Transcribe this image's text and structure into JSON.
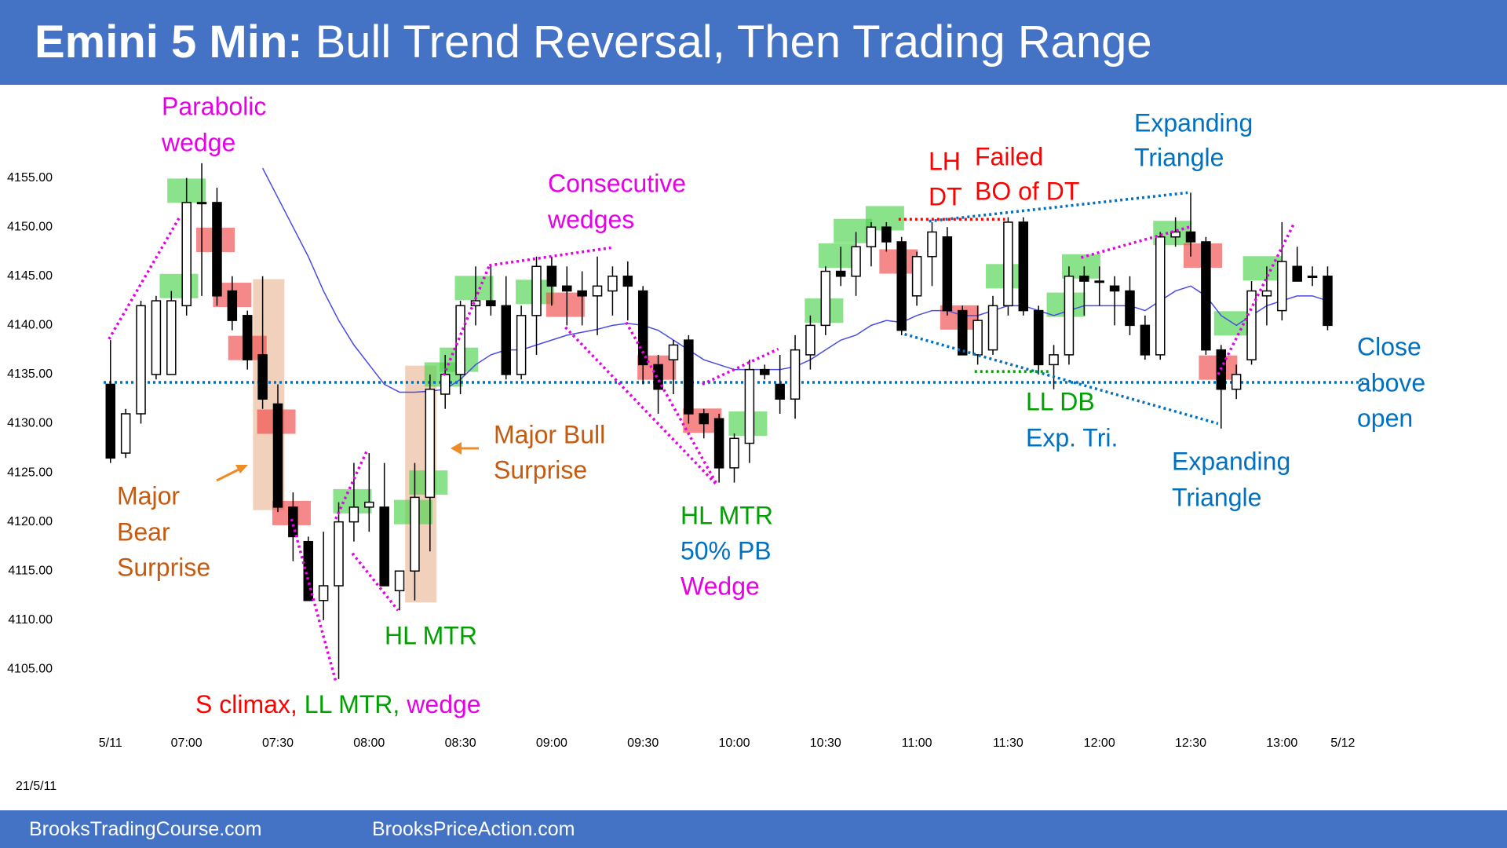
{
  "chart_data": {
    "type": "candlestick",
    "title_bold": "Emini 5 Min:",
    "title": "Bull Trend Reversal, Then Trading Range",
    "date_label": "21/5/11",
    "xlim": [
      -2,
      84
    ],
    "xticks": [
      {
        "value": 0,
        "label": "5/11"
      },
      {
        "value": 5,
        "label": "07:00"
      },
      {
        "value": 11,
        "label": "07:30"
      },
      {
        "value": 17,
        "label": "08:00"
      },
      {
        "value": 23,
        "label": "08:30"
      },
      {
        "value": 29,
        "label": "09:00"
      },
      {
        "value": 35,
        "label": "09:30"
      },
      {
        "value": 41,
        "label": "10:00"
      },
      {
        "value": 47,
        "label": "10:30"
      },
      {
        "value": 53,
        "label": "11:00"
      },
      {
        "value": 59,
        "label": "11:30"
      },
      {
        "value": 65,
        "label": "12:00"
      },
      {
        "value": 71,
        "label": "12:30"
      },
      {
        "value": 77,
        "label": "13:00"
      },
      {
        "value": 81,
        "label": "5/12"
      }
    ],
    "ylim": [
      4098,
      4164
    ],
    "yticks": [
      {
        "value": 4105,
        "label": "4105.00"
      },
      {
        "value": 4110,
        "label": "4110.00"
      },
      {
        "value": 4115,
        "label": "4115.00"
      },
      {
        "value": 4120,
        "label": "4120.00"
      },
      {
        "value": 4125,
        "label": "4125.00"
      },
      {
        "value": 4130,
        "label": "4130.00"
      },
      {
        "value": 4135,
        "label": "4135.00"
      },
      {
        "value": 4140,
        "label": "4140.00"
      },
      {
        "value": 4145,
        "label": "4145.00"
      },
      {
        "value": 4150,
        "label": "4150.00"
      },
      {
        "value": 4155,
        "label": "4155.00"
      }
    ],
    "up_color": "#ffffff",
    "down_color": "#000000",
    "open": [
      4134,
      4127,
      4131,
      4135,
      4135,
      4142,
      4152.5,
      4152.5,
      4143.5,
      4141,
      4137,
      4132,
      4121.5,
      4118,
      4112,
      4113.5,
      4120,
      4121.5,
      4121.5,
      4113,
      4115,
      4122.5,
      4133,
      4135,
      4142,
      4142.5,
      4142,
      4135,
      4141,
      4146,
      4144,
      4143.5,
      4143,
      4143.5,
      4145,
      4143.5,
      4136,
      4136.5,
      4138.5,
      4131,
      4130.5,
      4125.5,
      4128,
      4135.5,
      4134,
      4132.5,
      4137,
      4140,
      4145.5,
      4145,
      4148,
      4150,
      4148.5,
      4143,
      4147,
      4149,
      4141.5,
      4137,
      4137.5,
      4142,
      4150.5,
      4141.5,
      4136,
      4137,
      4145,
      4144.5,
      4144,
      4143.5,
      4140,
      4137,
      4149,
      4149.5,
      4148.5,
      4137.5,
      4133.5,
      4136.5,
      4143,
      4141.5,
      4146,
      4145,
      4145
    ],
    "high": [
      4138.5,
      4131.5,
      4142.5,
      4143,
      4143.5,
      4155,
      4156.5,
      4154,
      4145,
      4141.5,
      4145,
      4134,
      4123,
      4118.5,
      4119,
      4122,
      4126,
      4127,
      4126,
      4115,
      4126,
      4135,
      4137,
      4142.5,
      4146,
      4146,
      4145,
      4142,
      4147,
      4147,
      4146,
      4145.5,
      4147,
      4146,
      4146.5,
      4144,
      4137,
      4138.5,
      4139,
      4131.5,
      4131,
      4129,
      4136.5,
      4136,
      4137,
      4139,
      4141,
      4146,
      4148,
      4149.5,
      4150.5,
      4150.5,
      4149,
      4147.5,
      4150.5,
      4150,
      4142,
      4142,
      4143,
      4151,
      4151,
      4142,
      4138,
      4146,
      4146,
      4146,
      4145,
      4145,
      4141,
      4149.5,
      4151,
      4153.5,
      4149,
      4138,
      4136,
      4144.5,
      4146,
      4150.5,
      4148,
      4146,
      4146
    ],
    "low": [
      4126,
      4126.5,
      4130,
      4134.5,
      4135,
      4141,
      4143,
      4142,
      4139.5,
      4135.5,
      4131.5,
      4121,
      4116,
      4112,
      4110,
      4104,
      4118,
      4119,
      4114,
      4111,
      4112,
      4117,
      4131.5,
      4133,
      4140,
      4141,
      4134.5,
      4134.5,
      4137,
      4142,
      4140,
      4140,
      4139,
      4141,
      4140.5,
      4134,
      4131,
      4133,
      4130,
      4128.5,
      4124,
      4124,
      4126,
      4134.5,
      4131,
      4130.5,
      4135.5,
      4139,
      4144,
      4143,
      4146,
      4147.5,
      4139,
      4142,
      4144,
      4141,
      4137,
      4136,
      4137,
      4141,
      4141,
      4135,
      4133.5,
      4136,
      4141,
      4142,
      4140,
      4139,
      4136.5,
      4136.5,
      4148,
      4147,
      4137,
      4129.5,
      4132.5,
      4136,
      4140,
      4140.5,
      4144.5,
      4144,
      4139.5
    ],
    "close": [
      4126.5,
      4131,
      4142,
      4142.5,
      4142.5,
      4152.5,
      4152.5,
      4143,
      4140.5,
      4136.5,
      4132.5,
      4121.5,
      4118.5,
      4112,
      4113.5,
      4120,
      4121.5,
      4122,
      4113.5,
      4115,
      4122.5,
      4133.5,
      4135,
      4142,
      4142.5,
      4142,
      4135,
      4141,
      4146,
      4144,
      4143.5,
      4143,
      4144,
      4145,
      4144,
      4136,
      4133.5,
      4138,
      4131,
      4130,
      4125.5,
      4128.5,
      4135.5,
      4135,
      4132.5,
      4137.5,
      4140,
      4145.5,
      4145,
      4148,
      4150,
      4148.5,
      4139.5,
      4147,
      4149.5,
      4141.5,
      4137,
      4140.5,
      4142,
      4150.5,
      4141.5,
      4136,
      4137,
      4145,
      4144.5,
      4144.5,
      4143.5,
      4140,
      4137,
      4149,
      4149.5,
      4148.5,
      4137.5,
      4133.5,
      4135,
      4143.5,
      4143.5,
      4146.5,
      4144.5,
      4145,
      4140
    ],
    "ema_color": "#4a4ae6",
    "ema": [
      null,
      null,
      null,
      null,
      null,
      null,
      null,
      null,
      null,
      null,
      4156,
      4153,
      4150,
      4147,
      4143.5,
      4140.5,
      4138,
      4136,
      4134,
      4133.2,
      4133.2,
      4133.3,
      4133.5,
      4134.5,
      4136,
      4137,
      4137.5,
      4137.5,
      4138,
      4138.5,
      4139,
      4139.3,
      4139.6,
      4140,
      4140.2,
      4140,
      4139.5,
      4138.5,
      4137.5,
      4136.5,
      4136,
      4135.5,
      4135.5,
      4135.5,
      4135.5,
      4135.8,
      4136.5,
      4137.5,
      4138.5,
      4139,
      4140,
      4140.5,
      4140.3,
      4141,
      4141.5,
      4141.5,
      4141,
      4141,
      4141.5,
      4142,
      4142,
      4141.5,
      4141,
      4141.5,
      4142,
      4142,
      4142,
      4142,
      4141.5,
      4142.5,
      4143.5,
      4144,
      4143,
      4141,
      4140,
      4141,
      4142,
      4142.5,
      4143,
      4143,
      4142.5
    ],
    "reference_line": {
      "value": 4134.2,
      "color": "#0070c0"
    },
    "signal_boxes": [
      {
        "x": 5.0,
        "y": 4153.7,
        "color": "#4cd44c"
      },
      {
        "x": 4.5,
        "y": 4144,
        "color": "#4cd44c"
      },
      {
        "x": 15.9,
        "y": 4122.1,
        "color": "#4cd44c"
      },
      {
        "x": 19.9,
        "y": 4121,
        "color": "#4cd44c"
      },
      {
        "x": 20.9,
        "y": 4124,
        "color": "#4cd44c"
      },
      {
        "x": 21.9,
        "y": 4135,
        "color": "#4cd44c"
      },
      {
        "x": 22.9,
        "y": 4136.5,
        "color": "#4cd44c"
      },
      {
        "x": 23.9,
        "y": 4143.8,
        "color": "#4cd44c"
      },
      {
        "x": 27.9,
        "y": 4143.4,
        "color": "#4cd44c"
      },
      {
        "x": 41.9,
        "y": 4130,
        "color": "#4cd44c"
      },
      {
        "x": 46.9,
        "y": 4141.5,
        "color": "#4cd44c"
      },
      {
        "x": 47.8,
        "y": 4147.1,
        "color": "#4cd44c"
      },
      {
        "x": 48.8,
        "y": 4149.6,
        "color": "#4cd44c"
      },
      {
        "x": 50.9,
        "y": 4150.9,
        "color": "#4cd44c"
      },
      {
        "x": 58.8,
        "y": 4145,
        "color": "#4cd44c"
      },
      {
        "x": 62.8,
        "y": 4142.1,
        "color": "#4cd44c"
      },
      {
        "x": 63.8,
        "y": 4146,
        "color": "#4cd44c"
      },
      {
        "x": 69.8,
        "y": 4149.4,
        "color": "#4cd44c"
      },
      {
        "x": 73.8,
        "y": 4140.2,
        "color": "#4cd44c"
      },
      {
        "x": 75.7,
        "y": 4145.8,
        "color": "#4cd44c"
      },
      {
        "x": 6.9,
        "y": 4148.7,
        "color": "#f04848"
      },
      {
        "x": 8.0,
        "y": 4143.1,
        "color": "#f04848"
      },
      {
        "x": 9.0,
        "y": 4137.7,
        "color": "#f04848"
      },
      {
        "x": 10.9,
        "y": 4130.2,
        "color": "#f04848"
      },
      {
        "x": 11.9,
        "y": 4120.9,
        "color": "#f04848"
      },
      {
        "x": 29.9,
        "y": 4142.1,
        "color": "#f04848"
      },
      {
        "x": 35.9,
        "y": 4135.7,
        "color": "#f04848"
      },
      {
        "x": 38.9,
        "y": 4130.3,
        "color": "#f04848"
      },
      {
        "x": 51.8,
        "y": 4146.5,
        "color": "#f04848"
      },
      {
        "x": 55.8,
        "y": 4140.8,
        "color": "#f04848"
      },
      {
        "x": 71.8,
        "y": 4147.1,
        "color": "#f04848"
      },
      {
        "x": 72.8,
        "y": 4135.7,
        "color": "#f04848"
      }
    ],
    "surprise_boxes": [
      {
        "x": 10.4,
        "y": [
          4144.7,
          4121.2
        ],
        "color": "#e9b998"
      },
      {
        "x": 20.4,
        "y": [
          4135.9,
          4111.8
        ],
        "color": "#e9b998"
      }
    ],
    "trendlines": [
      {
        "x": [
          -0.1,
          4.5
        ],
        "y": [
          4138.6,
          4150.9
        ],
        "color": "#e600e6"
      },
      {
        "x": [
          11.9,
          14.8
        ],
        "y": [
          4120.3,
          4103.8
        ],
        "color": "#e600e6"
      },
      {
        "x": [
          14.8,
          16.9
        ],
        "y": [
          4120.3,
          4127.4
        ],
        "color": "#e600e6"
      },
      {
        "x": [
          15.9,
          18.9
        ],
        "y": [
          4116.8,
          4111
        ],
        "color": "#e600e6"
      },
      {
        "x": [
          21.9,
          24.9
        ],
        "y": [
          4134.9,
          4146.1
        ],
        "color": "#e600e6"
      },
      {
        "x": [
          24.9,
          32.9
        ],
        "y": [
          4146.1,
          4147.9
        ],
        "color": "#e600e6"
      },
      {
        "x": [
          29.9,
          39.9
        ],
        "y": [
          4139.8,
          4123.7
        ],
        "color": "#e600e6"
      },
      {
        "x": [
          33.9,
          39.9
        ],
        "y": [
          4140.3,
          4123.7
        ],
        "color": "#e600e6"
      },
      {
        "x": [
          38.9,
          43.9
        ],
        "y": [
          4134,
          4137.6
        ],
        "color": "#e600e6"
      },
      {
        "x": [
          63.8,
          70.9
        ],
        "y": [
          4146.9,
          4150
        ],
        "color": "#e600e6"
      },
      {
        "x": [
          72.8,
          77.8
        ],
        "y": [
          4135,
          4150.4
        ],
        "color": "#e600e6"
      },
      {
        "x": [
          52.2,
          72.8
        ],
        "y": [
          4139.1,
          4130
        ],
        "color": "#0070c0"
      },
      {
        "x": [
          53.8,
          70.8
        ],
        "y": [
          4150.6,
          4153.5
        ],
        "color": "#0070c0"
      },
      {
        "x": [
          51.8,
          58.8
        ],
        "y": [
          4150.8,
          4150.8
        ],
        "color": "#ff0000"
      },
      {
        "x": [
          56.8,
          61.8
        ],
        "y": [
          4135.3,
          4135.3
        ],
        "color": "#00a000"
      }
    ],
    "annotations": [
      {
        "lines": [
          "Parabolic",
          "wedge"
        ],
        "color": "#e600e6"
      },
      {
        "lines": [
          "Major",
          "Bear",
          "Surprise"
        ],
        "color": "#c55a11"
      },
      {
        "parts": [
          {
            "text": "S climax,",
            "color": "#ff0000"
          },
          {
            "text": "LL MTR,",
            "color": "#00a000"
          },
          {
            "text": "wedge",
            "color": "#e600e6"
          }
        ]
      },
      {
        "lines": [
          "HL MTR"
        ],
        "color": "#00a000"
      },
      {
        "lines": [
          "Major Bull",
          "Surprise"
        ],
        "color": "#c55a11"
      },
      {
        "lines": [
          "Consecutive",
          "wedges"
        ],
        "color": "#e600e6"
      },
      {
        "parts": [
          {
            "text": "HL MTR",
            "color": "#00a000"
          },
          {
            "text": "50% PB",
            "color": "#0070c0"
          },
          {
            "text": "Wedge",
            "color": "#e600e6"
          }
        ]
      },
      {
        "lines": [
          "LH",
          "DT"
        ],
        "color": "#ff0000"
      },
      {
        "lines": [
          "Failed",
          "BO of DT"
        ],
        "color": "#ff0000"
      },
      {
        "lines": [
          "Expanding",
          "Triangle"
        ],
        "color": "#0070c0"
      },
      {
        "parts": [
          {
            "text": "LL DB",
            "color": "#00a000"
          },
          {
            "text": "Exp. Tri.",
            "color": "#0070c0"
          }
        ]
      },
      {
        "lines": [
          "Expanding",
          "Triangle"
        ],
        "color": "#0070c0"
      },
      {
        "lines": [
          "Close",
          "above",
          "open"
        ],
        "color": "#0070c0"
      }
    ]
  },
  "footer": {
    "left": "BrooksTradingCourse.com",
    "right": "BrooksPriceAction.com"
  }
}
